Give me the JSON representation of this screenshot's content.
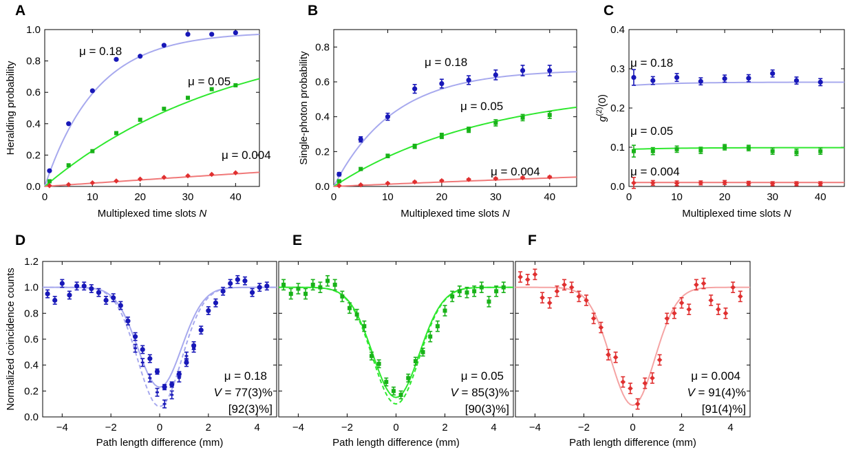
{
  "chart_data": [
    {
      "panel_label": "A",
      "type": "scatter",
      "xlabel_text": "Multiplexed time slots ",
      "xlabel_var": "N",
      "ylabel": "Heralding probability",
      "xlim": [
        0,
        45
      ],
      "ylim": [
        0,
        1.0
      ],
      "xticks": [
        "0",
        "10",
        "20",
        "30",
        "40"
      ],
      "yticks": [
        "0.0",
        "0.2",
        "0.4",
        "0.6",
        "0.8",
        "1.0"
      ],
      "series": [
        {
          "name": "μ = 0.18",
          "color": "#1818b8",
          "fit_color": "#a7a9ee",
          "marker": "circle",
          "x": [
            1,
            5,
            10,
            15,
            20,
            25,
            30,
            35,
            40
          ],
          "y": [
            0.1,
            0.4,
            0.61,
            0.81,
            0.83,
            0.9,
            0.97,
            0.97,
            0.98
          ],
          "fit": {
            "a": 0.985,
            "k": 0.092
          }
        },
        {
          "name": "μ = 0.05",
          "color": "#19b219",
          "fit_color": "#2ee82e",
          "marker": "square",
          "x": [
            1,
            5,
            10,
            15,
            20,
            25,
            30,
            35,
            40
          ],
          "y": [
            0.033,
            0.135,
            0.225,
            0.34,
            0.425,
            0.495,
            0.565,
            0.62,
            0.645
          ],
          "fit": {
            "a": 1.0,
            "k": 0.0258
          }
        },
        {
          "name": "μ = 0.004",
          "color": "#e03030",
          "fit_color": "#f07878",
          "marker": "diamond",
          "x": [
            1,
            5,
            10,
            15,
            20,
            25,
            30,
            35,
            40
          ],
          "y": [
            0.005,
            0.012,
            0.023,
            0.035,
            0.047,
            0.058,
            0.068,
            0.077,
            0.087
          ],
          "fit": {
            "a": 1.0,
            "k": 0.0021
          }
        }
      ]
    },
    {
      "panel_label": "B",
      "type": "scatter",
      "xlabel_text": "Multiplexed time slots ",
      "xlabel_var": "N",
      "ylabel": "Single-photon probability",
      "xlim": [
        0,
        45
      ],
      "ylim": [
        0,
        0.9
      ],
      "xticks": [
        "0",
        "10",
        "20",
        "30",
        "40"
      ],
      "yticks": [
        "0.0",
        "0.2",
        "0.4",
        "0.6",
        "0.8"
      ],
      "series": [
        {
          "name": "μ = 0.18",
          "color": "#1818b8",
          "fit_color": "#a7a9ee",
          "marker": "circle",
          "x": [
            1,
            5,
            10,
            15,
            20,
            25,
            30,
            35,
            40
          ],
          "y": [
            0.07,
            0.27,
            0.4,
            0.56,
            0.59,
            0.61,
            0.64,
            0.665,
            0.665
          ],
          "err": [
            0.01,
            0.015,
            0.02,
            0.025,
            0.025,
            0.025,
            0.028,
            0.03,
            0.03
          ],
          "fit": {
            "a": 0.67,
            "k": 0.09
          }
        },
        {
          "name": "μ = 0.05",
          "color": "#19b219",
          "fit_color": "#2ee82e",
          "marker": "square",
          "x": [
            1,
            5,
            10,
            15,
            20,
            25,
            30,
            35,
            40
          ],
          "y": [
            0.03,
            0.1,
            0.175,
            0.23,
            0.29,
            0.325,
            0.365,
            0.395,
            0.41
          ],
          "err": [
            0.005,
            0.008,
            0.01,
            0.012,
            0.015,
            0.015,
            0.018,
            0.018,
            0.02
          ],
          "fit": {
            "a": 0.57,
            "k": 0.0355
          }
        },
        {
          "name": "μ = 0.004",
          "color": "#e03030",
          "fit_color": "#f07878",
          "marker": "diamond",
          "x": [
            1,
            5,
            10,
            15,
            20,
            25,
            30,
            35,
            40
          ],
          "y": [
            0.004,
            0.009,
            0.018,
            0.026,
            0.033,
            0.04,
            0.045,
            0.05,
            0.054
          ],
          "err": [
            0.002,
            0.003,
            0.003,
            0.004,
            0.004,
            0.004,
            0.005,
            0.005,
            0.005
          ],
          "fit": {
            "a": 0.3,
            "k": 0.0044
          }
        }
      ]
    },
    {
      "panel_label": "C",
      "type": "scatter",
      "xlabel_text": "Multiplexed time slots ",
      "xlabel_var": "N",
      "ylabel": "g(2)(0)",
      "xlim": [
        0,
        45
      ],
      "ylim": [
        0,
        0.4
      ],
      "xticks": [
        "0",
        "10",
        "20",
        "30",
        "40"
      ],
      "yticks": [
        "0.0",
        "0.1",
        "0.2",
        "0.3",
        "0.4"
      ],
      "series": [
        {
          "name": "μ = 0.18",
          "color": "#1818b8",
          "fit_color": "#a7a9ee",
          "marker": "circle",
          "x": [
            1,
            5,
            10,
            15,
            20,
            25,
            30,
            35,
            40
          ],
          "y": [
            0.278,
            0.27,
            0.278,
            0.268,
            0.275,
            0.276,
            0.288,
            0.27,
            0.266
          ],
          "err": [
            0.02,
            0.01,
            0.01,
            0.009,
            0.009,
            0.009,
            0.009,
            0.009,
            0.009
          ],
          "fit_line": [
            0.258,
            0.266
          ]
        },
        {
          "name": "μ = 0.05",
          "color": "#19b219",
          "fit_color": "#2ee82e",
          "marker": "square",
          "x": [
            1,
            5,
            10,
            15,
            20,
            25,
            30,
            35,
            40
          ],
          "y": [
            0.09,
            0.09,
            0.095,
            0.092,
            0.1,
            0.098,
            0.09,
            0.087,
            0.09
          ],
          "err": [
            0.015,
            0.009,
            0.008,
            0.008,
            0.007,
            0.007,
            0.008,
            0.008,
            0.008
          ],
          "fit_line": [
            0.095,
            0.099
          ]
        },
        {
          "name": "μ = 0.004",
          "color": "#e03030",
          "fit_color": "#f07878",
          "marker": "diamond",
          "x": [
            1,
            5,
            10,
            15,
            20,
            25,
            30,
            35,
            40
          ],
          "y": [
            0.009,
            0.009,
            0.008,
            0.009,
            0.01,
            0.008,
            0.007,
            0.007,
            0.007
          ],
          "err": [
            0.014,
            0.006,
            0.006,
            0.005,
            0.005,
            0.005,
            0.005,
            0.005,
            0.005
          ],
          "fit_line": [
            0.01,
            0.01
          ]
        }
      ]
    },
    {
      "panel_label": "D",
      "type": "scatter",
      "xlabel": "Path length difference (mm)",
      "ylabel": "Normalized coincidence counts",
      "xlim": [
        -4.8,
        4.8
      ],
      "ylim": [
        0,
        1.2
      ],
      "xticks": [
        "−4",
        "−2",
        "0",
        "2",
        "4"
      ],
      "yticks": [
        "0.0",
        "0.2",
        "0.4",
        "0.6",
        "0.8",
        "1.0",
        "1.2"
      ],
      "annotation": [
        "μ = 0.18",
        "77(3)%",
        "[92(3)%]"
      ],
      "color": "#1818b8",
      "fit_color": "#a7a9ee",
      "marker": "circle",
      "fit": {
        "vis": 0.77,
        "sigma": 0.9,
        "dashed_vis": 0.92
      },
      "x": [
        -4.6,
        -4.3,
        -4.0,
        -3.7,
        -3.4,
        -3.1,
        -2.8,
        -2.5,
        -2.2,
        -1.9,
        -1.6,
        -1.3,
        -1.0,
        -0.7,
        -0.4,
        -0.1,
        0.2,
        0.5,
        0.8,
        1.1,
        1.4,
        1.7,
        2.0,
        2.3,
        2.6,
        2.9,
        3.2,
        3.5,
        3.8,
        4.1,
        4.4
      ],
      "y": [
        0.95,
        0.9,
        1.03,
        0.94,
        1.01,
        1.01,
        0.99,
        0.96,
        0.9,
        0.92,
        0.86,
        0.74,
        0.62,
        0.52,
        0.45,
        0.35,
        0.23,
        0.25,
        0.33,
        0.42,
        0.55,
        0.67,
        0.82,
        0.88,
        0.97,
        1.03,
        1.06,
        1.05,
        0.96,
        1.0,
        1.01
      ],
      "err": [
        0.03,
        0.03,
        0.03,
        0.03,
        0.03,
        0.03,
        0.03,
        0.03,
        0.03,
        0.03,
        0.03,
        0.03,
        0.03,
        0.03,
        0.03,
        0.02,
        0.02,
        0.02,
        0.02,
        0.03,
        0.03,
        0.03,
        0.03,
        0.03,
        0.03,
        0.03,
        0.03,
        0.03,
        0.03,
        0.03,
        0.03
      ],
      "x2": [
        -1.0,
        -0.7,
        -0.4,
        -0.1,
        0.2,
        0.5,
        0.8,
        1.1,
        1.4
      ],
      "y2": [
        0.53,
        0.42,
        0.3,
        0.19,
        0.1,
        0.17,
        0.3,
        0.47,
        0.53
      ]
    },
    {
      "panel_label": "E",
      "type": "scatter",
      "xlabel": "Path length difference (mm)",
      "xlim": [
        -4.8,
        4.8
      ],
      "ylim": [
        0,
        1.2
      ],
      "xticks": [
        "−4",
        "−2",
        "0",
        "2",
        "4"
      ],
      "annotation": [
        "μ = 0.05",
        "85(3)%",
        "[90(3)%]"
      ],
      "color": "#19b219",
      "fit_color": "#2ee82e",
      "marker": "square",
      "fit": {
        "vis": 0.85,
        "sigma": 0.95,
        "dashed_vis": 0.9
      },
      "x": [
        -4.6,
        -4.3,
        -4.0,
        -3.7,
        -3.4,
        -3.1,
        -2.8,
        -2.5,
        -2.2,
        -1.9,
        -1.6,
        -1.3,
        -1.0,
        -0.7,
        -0.4,
        -0.1,
        0.2,
        0.5,
        0.8,
        1.1,
        1.4,
        1.7,
        2.0,
        2.3,
        2.6,
        2.9,
        3.2,
        3.5,
        3.8,
        4.1,
        4.4
      ],
      "y": [
        1.02,
        0.95,
        0.99,
        0.95,
        1.02,
        1.0,
        1.05,
        1.02,
        0.93,
        0.84,
        0.79,
        0.7,
        0.47,
        0.41,
        0.27,
        0.2,
        0.17,
        0.3,
        0.43,
        0.5,
        0.62,
        0.7,
        0.82,
        0.93,
        0.97,
        0.96,
        0.97,
        1.0,
        0.89,
        0.97,
        1.0
      ],
      "err": [
        0.04,
        0.04,
        0.04,
        0.04,
        0.04,
        0.04,
        0.04,
        0.04,
        0.04,
        0.04,
        0.04,
        0.04,
        0.03,
        0.03,
        0.03,
        0.03,
        0.03,
        0.03,
        0.03,
        0.03,
        0.04,
        0.04,
        0.04,
        0.04,
        0.04,
        0.04,
        0.04,
        0.04,
        0.04,
        0.04,
        0.04
      ]
    },
    {
      "panel_label": "F",
      "type": "scatter",
      "xlabel": "Path length difference (mm)",
      "xlim": [
        -4.8,
        4.8
      ],
      "ylim": [
        0,
        1.2
      ],
      "xticks": [
        "−4",
        "−2",
        "0",
        "2",
        "4"
      ],
      "annotation": [
        "μ = 0.004",
        "91(4)%",
        "[91(4)%]"
      ],
      "color": "#e03030",
      "fit_color": "#f5a3a3",
      "marker": "diamond",
      "fit": {
        "vis": 0.91,
        "sigma": 0.9
      },
      "x": [
        -4.6,
        -4.3,
        -4.0,
        -3.7,
        -3.4,
        -3.1,
        -2.8,
        -2.5,
        -2.2,
        -1.9,
        -1.6,
        -1.3,
        -1.0,
        -0.7,
        -0.4,
        -0.1,
        0.2,
        0.5,
        0.8,
        1.1,
        1.4,
        1.7,
        2.0,
        2.3,
        2.6,
        2.9,
        3.2,
        3.5,
        3.8,
        4.1,
        4.4
      ],
      "y": [
        1.08,
        1.06,
        1.1,
        0.92,
        0.88,
        0.97,
        1.02,
        1.0,
        0.93,
        0.9,
        0.76,
        0.69,
        0.48,
        0.46,
        0.27,
        0.22,
        0.1,
        0.26,
        0.3,
        0.44,
        0.76,
        0.8,
        0.88,
        0.83,
        1.02,
        1.03,
        0.9,
        0.83,
        0.8,
        1.0,
        0.93
      ]
    }
  ]
}
